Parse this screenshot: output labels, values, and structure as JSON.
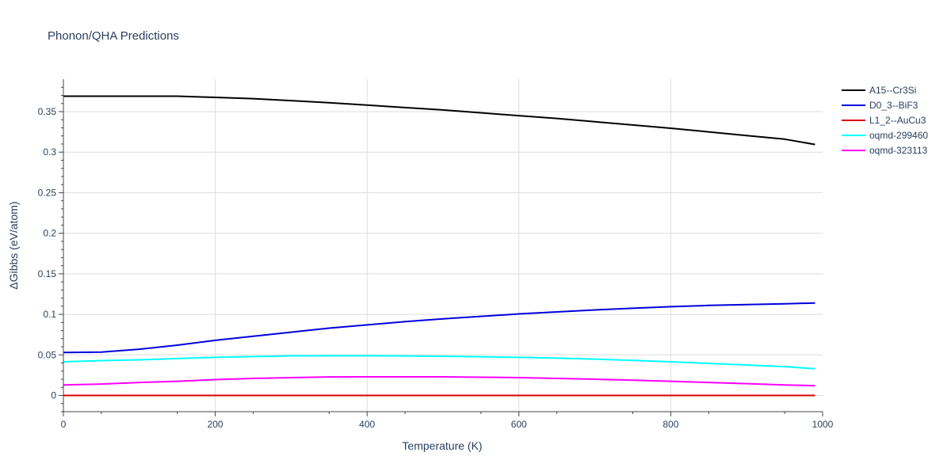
{
  "chart_data": {
    "type": "line",
    "title": "Phonon/QHA Predictions",
    "xlabel": "Temperature (K)",
    "ylabel": "ΔGibbs (eV/atom)",
    "xlim": [
      0,
      1000
    ],
    "ylim": [
      -0.02,
      0.39
    ],
    "x_ticks": [
      0,
      200,
      400,
      600,
      800,
      1000
    ],
    "x_tick_labels": [
      "0",
      "200",
      "400",
      "600",
      "800",
      "1000"
    ],
    "y_ticks": [
      0,
      0.05,
      0.1,
      0.15,
      0.2,
      0.25,
      0.3,
      0.35
    ],
    "y_tick_labels": [
      "0",
      "0.05",
      "0.1",
      "0.15",
      "0.2",
      "0.25",
      "0.3",
      "0.35"
    ],
    "grid": true,
    "legend_position": "top-right",
    "series": [
      {
        "name": "A15--Cr3Si",
        "color": "#000000",
        "x": [
          0,
          50,
          100,
          150,
          200,
          250,
          300,
          350,
          400,
          450,
          500,
          550,
          600,
          650,
          700,
          750,
          800,
          850,
          900,
          950,
          990
        ],
        "y": [
          0.369,
          0.369,
          0.369,
          0.369,
          0.3675,
          0.366,
          0.3635,
          0.361,
          0.358,
          0.355,
          0.352,
          0.3485,
          0.345,
          0.3415,
          0.3375,
          0.3335,
          0.3295,
          0.325,
          0.3205,
          0.316,
          0.3095
        ]
      },
      {
        "name": "D0_3--BiF3",
        "color": "#0000dd",
        "x": [
          0,
          50,
          100,
          150,
          200,
          250,
          300,
          350,
          400,
          450,
          500,
          550,
          600,
          650,
          700,
          750,
          800,
          850,
          900,
          950,
          990
        ],
        "y": [
          0.053,
          0.0535,
          0.057,
          0.062,
          0.068,
          0.073,
          0.078,
          0.083,
          0.087,
          0.091,
          0.0945,
          0.0975,
          0.1005,
          0.103,
          0.1055,
          0.1075,
          0.1095,
          0.111,
          0.112,
          0.113,
          0.114
        ]
      },
      {
        "name": "L1_2--AuCu3",
        "color": "#dd0000",
        "x": [
          0,
          990
        ],
        "y": [
          0.0,
          0.0
        ]
      },
      {
        "name": "oqmd-299460",
        "color": "#00ffff",
        "x": [
          0,
          50,
          100,
          150,
          200,
          250,
          300,
          350,
          400,
          450,
          500,
          550,
          600,
          650,
          700,
          750,
          800,
          850,
          900,
          950,
          990
        ],
        "y": [
          0.0415,
          0.043,
          0.044,
          0.0455,
          0.047,
          0.048,
          0.0488,
          0.049,
          0.049,
          0.0487,
          0.0483,
          0.0477,
          0.047,
          0.046,
          0.0448,
          0.0432,
          0.0415,
          0.0395,
          0.0375,
          0.0355,
          0.033
        ]
      },
      {
        "name": "oqmd-323113",
        "color": "#ff00ff",
        "x": [
          0,
          50,
          100,
          150,
          200,
          250,
          300,
          350,
          400,
          450,
          500,
          550,
          600,
          650,
          700,
          750,
          800,
          850,
          900,
          950,
          990
        ],
        "y": [
          0.013,
          0.014,
          0.016,
          0.0175,
          0.0195,
          0.021,
          0.022,
          0.0228,
          0.023,
          0.023,
          0.023,
          0.0225,
          0.022,
          0.021,
          0.02,
          0.0188,
          0.0175,
          0.016,
          0.0145,
          0.013,
          0.012
        ]
      }
    ]
  }
}
